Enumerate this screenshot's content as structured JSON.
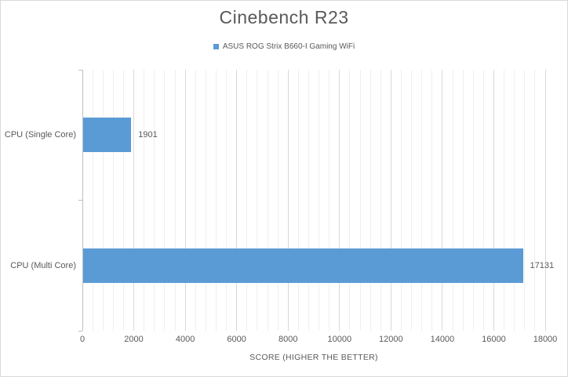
{
  "chart_data": {
    "type": "bar",
    "orientation": "horizontal",
    "title": "Cinebench R23",
    "categories": [
      "CPU (Single Core)",
      "CPU (Multi Core)"
    ],
    "series": [
      {
        "name": "ASUS ROG Strix B660-I Gaming WiFi",
        "color": "#5B9BD5",
        "values": [
          1901,
          17131
        ]
      }
    ],
    "data_labels": [
      "1901",
      "17131"
    ],
    "xlabel": "SCORE (HIGHER THE BETTER)",
    "ylabel": "",
    "xlim": [
      0,
      18000
    ],
    "x_major_unit": 2000,
    "x_minor_unit": 400,
    "x_tick_labels": [
      "0",
      "2000",
      "4000",
      "6000",
      "8000",
      "10000",
      "12000",
      "14000",
      "16000",
      "18000"
    ],
    "grid": "major-and-minor-vertical",
    "legend_position": "top-center"
  },
  "style": {
    "bar_color": "#5B9BD5",
    "text_color": "#595959",
    "major_grid_color": "#D9D9D9",
    "minor_grid_color": "#EFEFEF",
    "axis_line_color": "#BFBFBF",
    "chart_border_color": "#D9D9D9",
    "background_color": "#FFFFFF"
  }
}
